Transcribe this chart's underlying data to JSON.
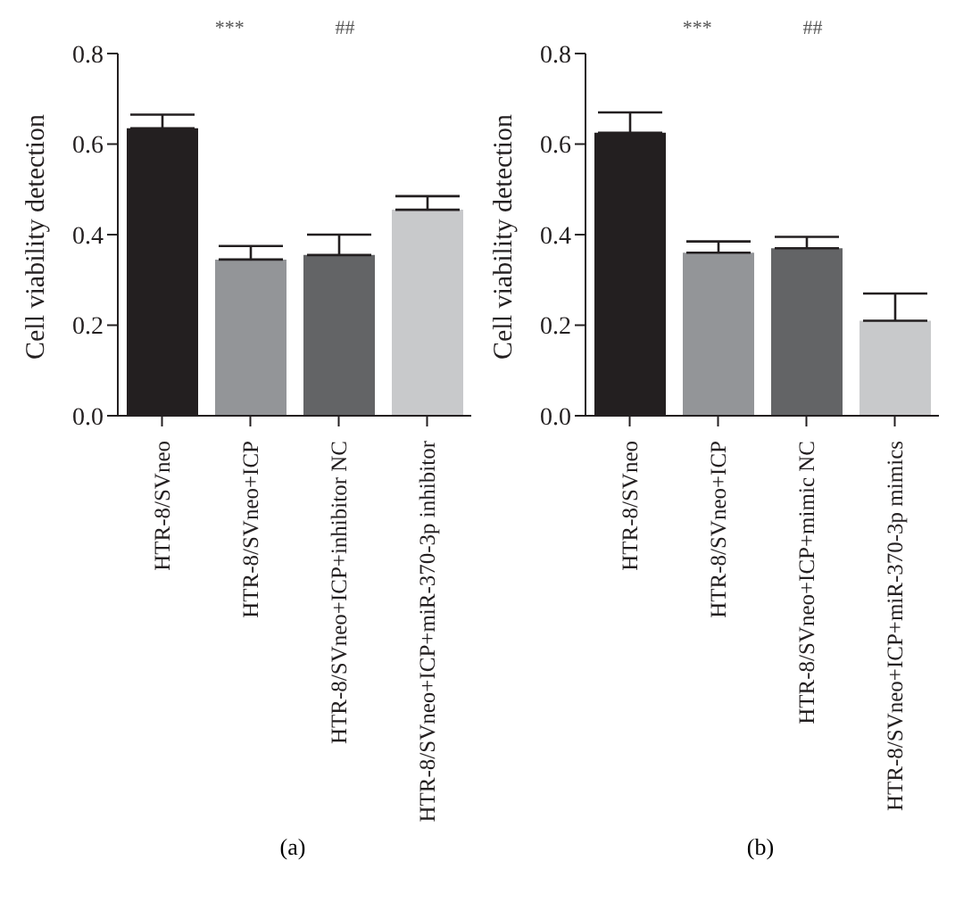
{
  "chart_data": [
    {
      "type": "bar",
      "ylabel": "Cell viability detection",
      "categories": [
        "HTR-8/SVneo",
        "HTR-8/SVneo+ICP",
        "HTR-8/SVneo+ICP+inhibitor NC",
        "HTR-8/SVneo+ICP+miR-370-3p inhibitor"
      ],
      "values": [
        0.635,
        0.345,
        0.355,
        0.455
      ],
      "colors": [
        "#231f20",
        "#939598",
        "#636466",
        "#c8c9cb"
      ],
      "errors": [
        [
          0.635,
          0.665
        ],
        [
          0.345,
          0.375
        ],
        [
          0.355,
          0.4
        ],
        [
          0.455,
          0.485
        ]
      ],
      "ylim": [
        0,
        0.8
      ],
      "yticks": [
        {
          "value": 0,
          "label": "0.0"
        },
        0.2,
        0.4,
        0.6,
        0.8
      ],
      "grid": false,
      "annotations": [
        "***",
        "##",
        "(a)"
      ]
    },
    {
      "type": "bar",
      "ylabel": "Cell viability detection",
      "categories": [
        "HTR-8/SVneo",
        "HTR-8/SVneo+ICP",
        "HTR-8/SVneo+ICP+mimic NC",
        "HTR-8/SVneo+ICP+miR-370-3p mimics"
      ],
      "values": [
        0.625,
        0.36,
        0.37,
        0.21
      ],
      "colors": [
        "#231f20",
        "#939598",
        "#636466",
        "#c8c9cb"
      ],
      "errors": [
        [
          0.625,
          0.67
        ],
        [
          0.36,
          0.385
        ],
        [
          0.37,
          0.395
        ],
        [
          0.21,
          0.27
        ]
      ],
      "ylim": [
        0,
        0.8
      ],
      "yticks": [
        {
          "value": 0,
          "label": "0.0"
        },
        0.2,
        0.4,
        0.6,
        0.8
      ],
      "grid": false,
      "annotations": [
        "***",
        "##",
        "(b)"
      ]
    }
  ]
}
